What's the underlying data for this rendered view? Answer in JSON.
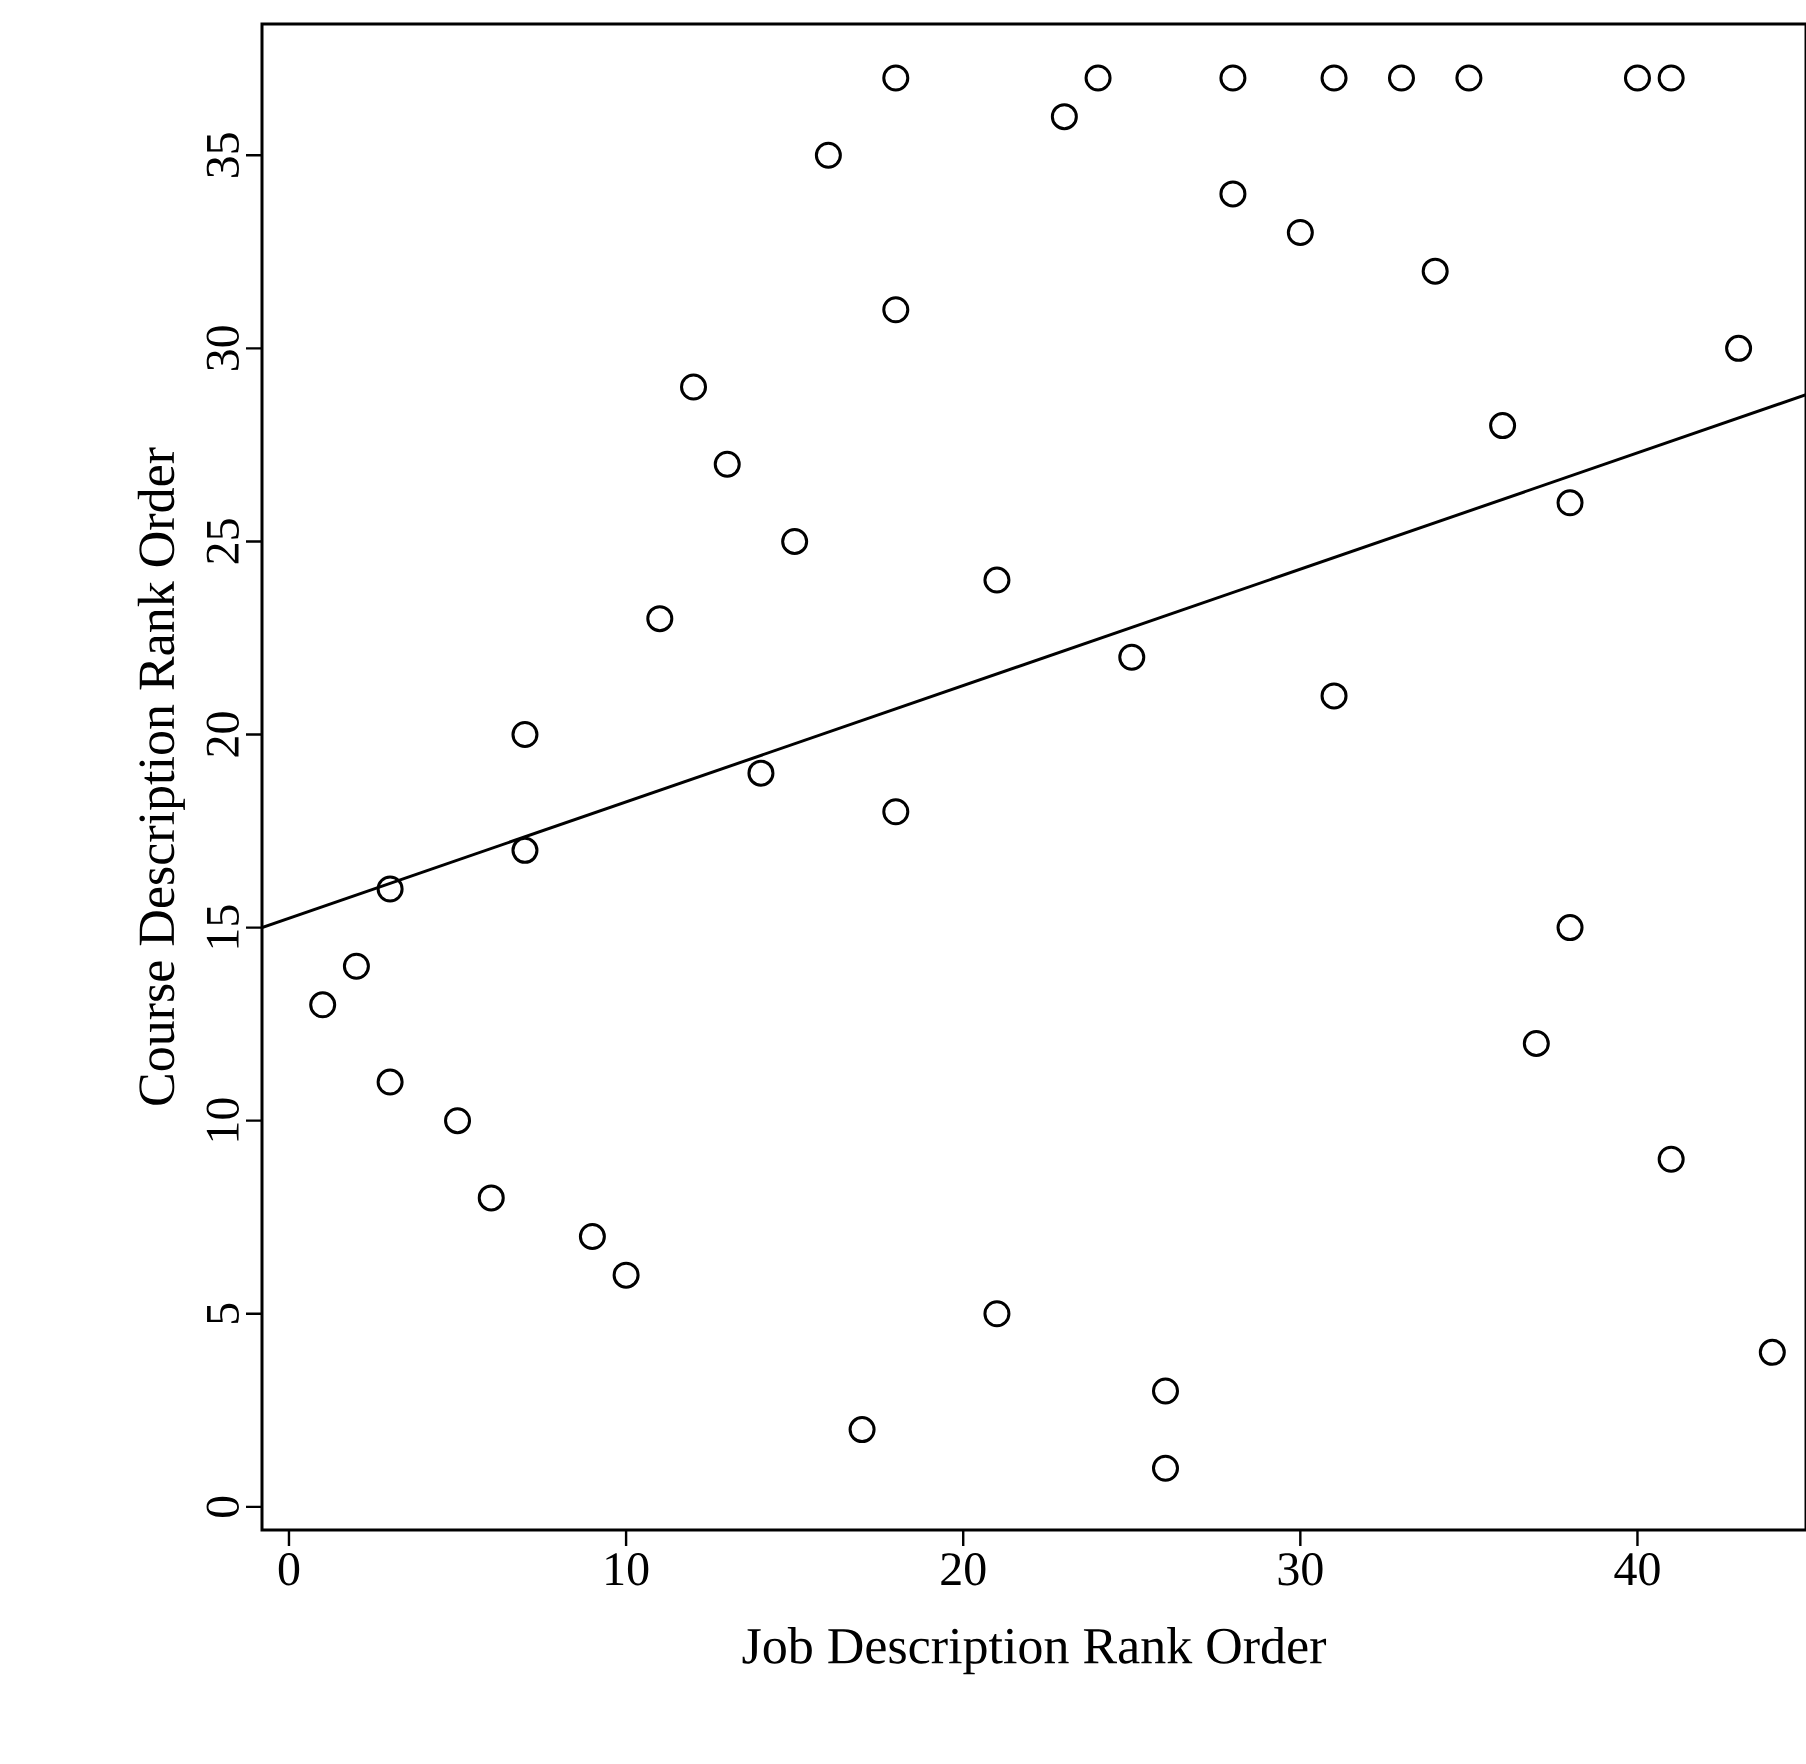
{
  "chart_data": {
    "type": "scatter",
    "xlabel": "Job Description Rank Order",
    "ylabel": "Course Description Rank Order",
    "xlim": [
      -0.8,
      45
    ],
    "ylim": [
      -0.6,
      38.4
    ],
    "xticks": [
      0,
      10,
      20,
      30,
      40
    ],
    "yticks": [
      0,
      5,
      10,
      15,
      20,
      25,
      30,
      35
    ],
    "grid": false,
    "legend": false,
    "series": [
      {
        "color": "#000000",
        "marker": "circle",
        "x": [
          1,
          2,
          3,
          3,
          5,
          6,
          7,
          7,
          9,
          10,
          11,
          12,
          13,
          14,
          15,
          16,
          17,
          18,
          18,
          18,
          21,
          21,
          23,
          24,
          25,
          26,
          26,
          28,
          28,
          30,
          31,
          31,
          33,
          34,
          35,
          36,
          37,
          38,
          38,
          40,
          41,
          41,
          43,
          44
        ],
        "values": [
          13,
          14,
          16,
          11,
          10,
          8,
          20,
          17,
          7,
          6,
          23,
          29,
          27,
          19,
          25,
          35,
          2,
          37,
          31,
          18,
          24,
          5,
          36,
          37,
          22,
          3,
          1,
          37,
          34,
          33,
          37,
          21,
          37,
          32,
          37,
          28,
          12,
          26,
          15,
          37,
          37,
          9,
          30,
          4
        ]
      },
      {
        "type": "line",
        "color": "#000000",
        "marker": "none",
        "x": [
          -0.8,
          45
        ],
        "values": [
          15.0,
          28.8
        ]
      }
    ]
  }
}
